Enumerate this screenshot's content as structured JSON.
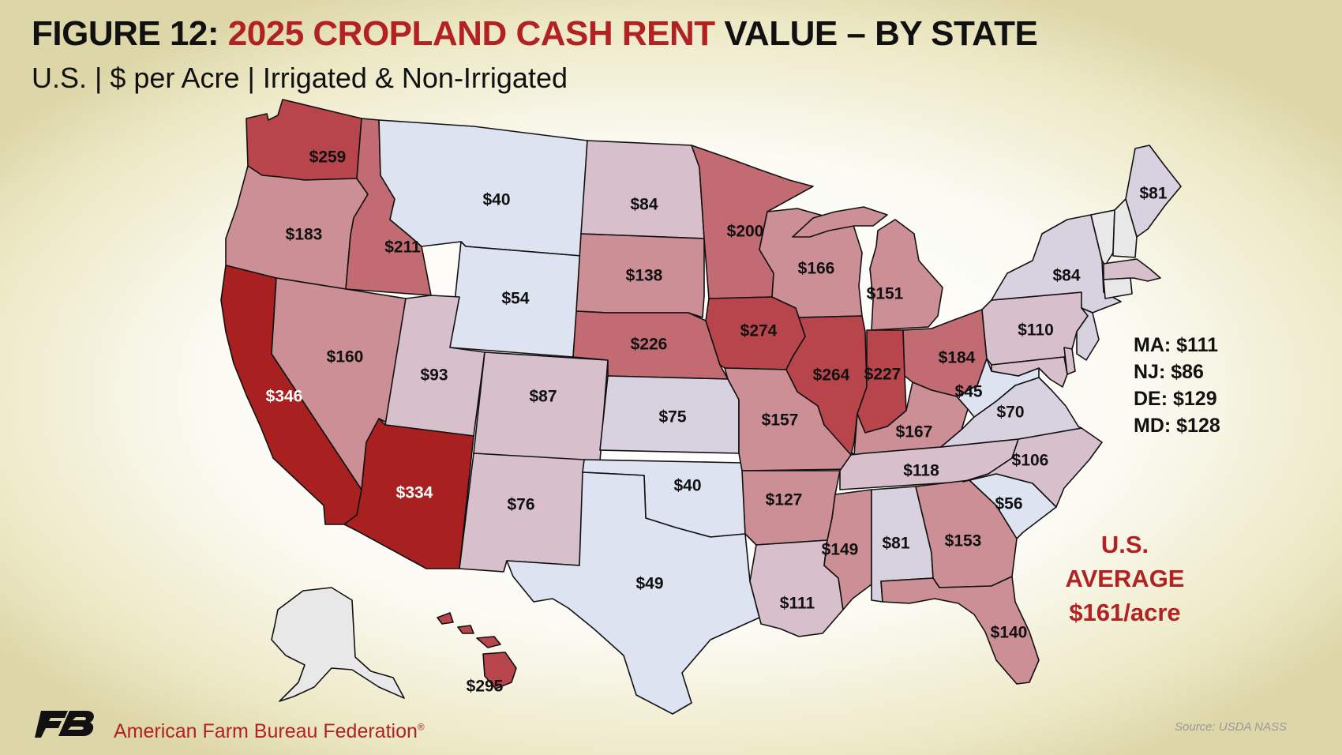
{
  "title": {
    "prefix": "FIGURE 12: ",
    "highlight": "2025 CROPLAND CASH RENT",
    "suffix": " VALUE – BY STATE"
  },
  "subtitle": "U.S. | $ per Acre | Irrigated & Non-Irrigated",
  "colors": {
    "lowest": "#dee3f2",
    "low": "#d8d2e0",
    "mid_low": "#d8bfcc",
    "mid": "#cc8f96",
    "high": "#c26b72",
    "higher": "#b8454b",
    "highest": "#a8201f",
    "no_data": "#e8e8e8",
    "accent": "#b22222"
  },
  "states": [
    {
      "code": "WA",
      "value": "$259",
      "color": "#b8454b"
    },
    {
      "code": "OR",
      "value": "$183",
      "color": "#cc8f96"
    },
    {
      "code": "CA",
      "value": "$346",
      "color": "#a8201f"
    },
    {
      "code": "ID",
      "value": "$211",
      "color": "#c26b72"
    },
    {
      "code": "NV",
      "value": "$160",
      "color": "#cc8f96"
    },
    {
      "code": "MT",
      "value": "$40",
      "color": "#dee3f2"
    },
    {
      "code": "WY",
      "value": "$54",
      "color": "#dee3f2"
    },
    {
      "code": "UT",
      "value": "$93",
      "color": "#d8bfcc"
    },
    {
      "code": "AZ",
      "value": "$334",
      "color": "#a8201f"
    },
    {
      "code": "CO",
      "value": "$87",
      "color": "#d8bfcc"
    },
    {
      "code": "NM",
      "value": "$76",
      "color": "#d8bfcc"
    },
    {
      "code": "ND",
      "value": "$84",
      "color": "#d8bfcc"
    },
    {
      "code": "SD",
      "value": "$138",
      "color": "#cc8f96"
    },
    {
      "code": "NE",
      "value": "$226",
      "color": "#c26b72"
    },
    {
      "code": "KS",
      "value": "$75",
      "color": "#d8d2e0"
    },
    {
      "code": "OK",
      "value": "$40",
      "color": "#dee3f2"
    },
    {
      "code": "TX",
      "value": "$49",
      "color": "#dee3f2"
    },
    {
      "code": "MN",
      "value": "$200",
      "color": "#c26b72"
    },
    {
      "code": "IA",
      "value": "$274",
      "color": "#b8454b"
    },
    {
      "code": "MO",
      "value": "$157",
      "color": "#cc8f96"
    },
    {
      "code": "AR",
      "value": "$127",
      "color": "#cc8f96"
    },
    {
      "code": "LA",
      "value": "$111",
      "color": "#d8bfcc"
    },
    {
      "code": "WI",
      "value": "$166",
      "color": "#cc8f96"
    },
    {
      "code": "IL",
      "value": "$264",
      "color": "#b8454b"
    },
    {
      "code": "MI",
      "value": "$151",
      "color": "#cc8f96"
    },
    {
      "code": "IN",
      "value": "$227",
      "color": "#b8454b"
    },
    {
      "code": "OH",
      "value": "$184",
      "color": "#c26b72"
    },
    {
      "code": "KY",
      "value": "$167",
      "color": "#cc8f96"
    },
    {
      "code": "TN",
      "value": "$118",
      "color": "#d8bfcc"
    },
    {
      "code": "MS",
      "value": "$149",
      "color": "#cc8f96"
    },
    {
      "code": "AL",
      "value": "$81",
      "color": "#d8d2e0"
    },
    {
      "code": "GA",
      "value": "$153",
      "color": "#cc8f96"
    },
    {
      "code": "FL",
      "value": "$140",
      "color": "#cc8f96"
    },
    {
      "code": "SC",
      "value": "$56",
      "color": "#dee3f2"
    },
    {
      "code": "NC",
      "value": "$106",
      "color": "#d8bfcc"
    },
    {
      "code": "VA",
      "value": "$70",
      "color": "#d8d2e0"
    },
    {
      "code": "WV",
      "value": "$45",
      "color": "#dee3f2"
    },
    {
      "code": "PA",
      "value": "$110",
      "color": "#d8bfcc"
    },
    {
      "code": "NY",
      "value": "$84",
      "color": "#d8d2e0"
    },
    {
      "code": "ME",
      "value": "$81",
      "color": "#d8d2e0"
    },
    {
      "code": "VT",
      "value": "",
      "color": "#e8e8e8"
    },
    {
      "code": "NH",
      "value": "",
      "color": "#e8e8e8"
    },
    {
      "code": "MA",
      "value": "",
      "color": "#d8bfcc"
    },
    {
      "code": "CT",
      "value": "",
      "color": "#e8e8e8"
    },
    {
      "code": "NJ",
      "value": "",
      "color": "#d8d2e0"
    },
    {
      "code": "MD",
      "value": "",
      "color": "#d8bfcc"
    },
    {
      "code": "DE",
      "value": "",
      "color": "#d8bfcc"
    },
    {
      "code": "AK",
      "value": "",
      "color": "#e8e8e8"
    },
    {
      "code": "HI",
      "value": "$295",
      "color": "#b8454b"
    }
  ],
  "small_states": [
    {
      "label": "MA: $111"
    },
    {
      "label": "NJ: $86"
    },
    {
      "label": "DE: $129"
    },
    {
      "label": "MD: $128"
    }
  ],
  "average": {
    "line1": "U.S.",
    "line2": "AVERAGE",
    "line3": "$161/acre"
  },
  "footer": {
    "organization": "American Farm Bureau Federation",
    "registered": "®",
    "source": "Source: USDA NASS"
  }
}
